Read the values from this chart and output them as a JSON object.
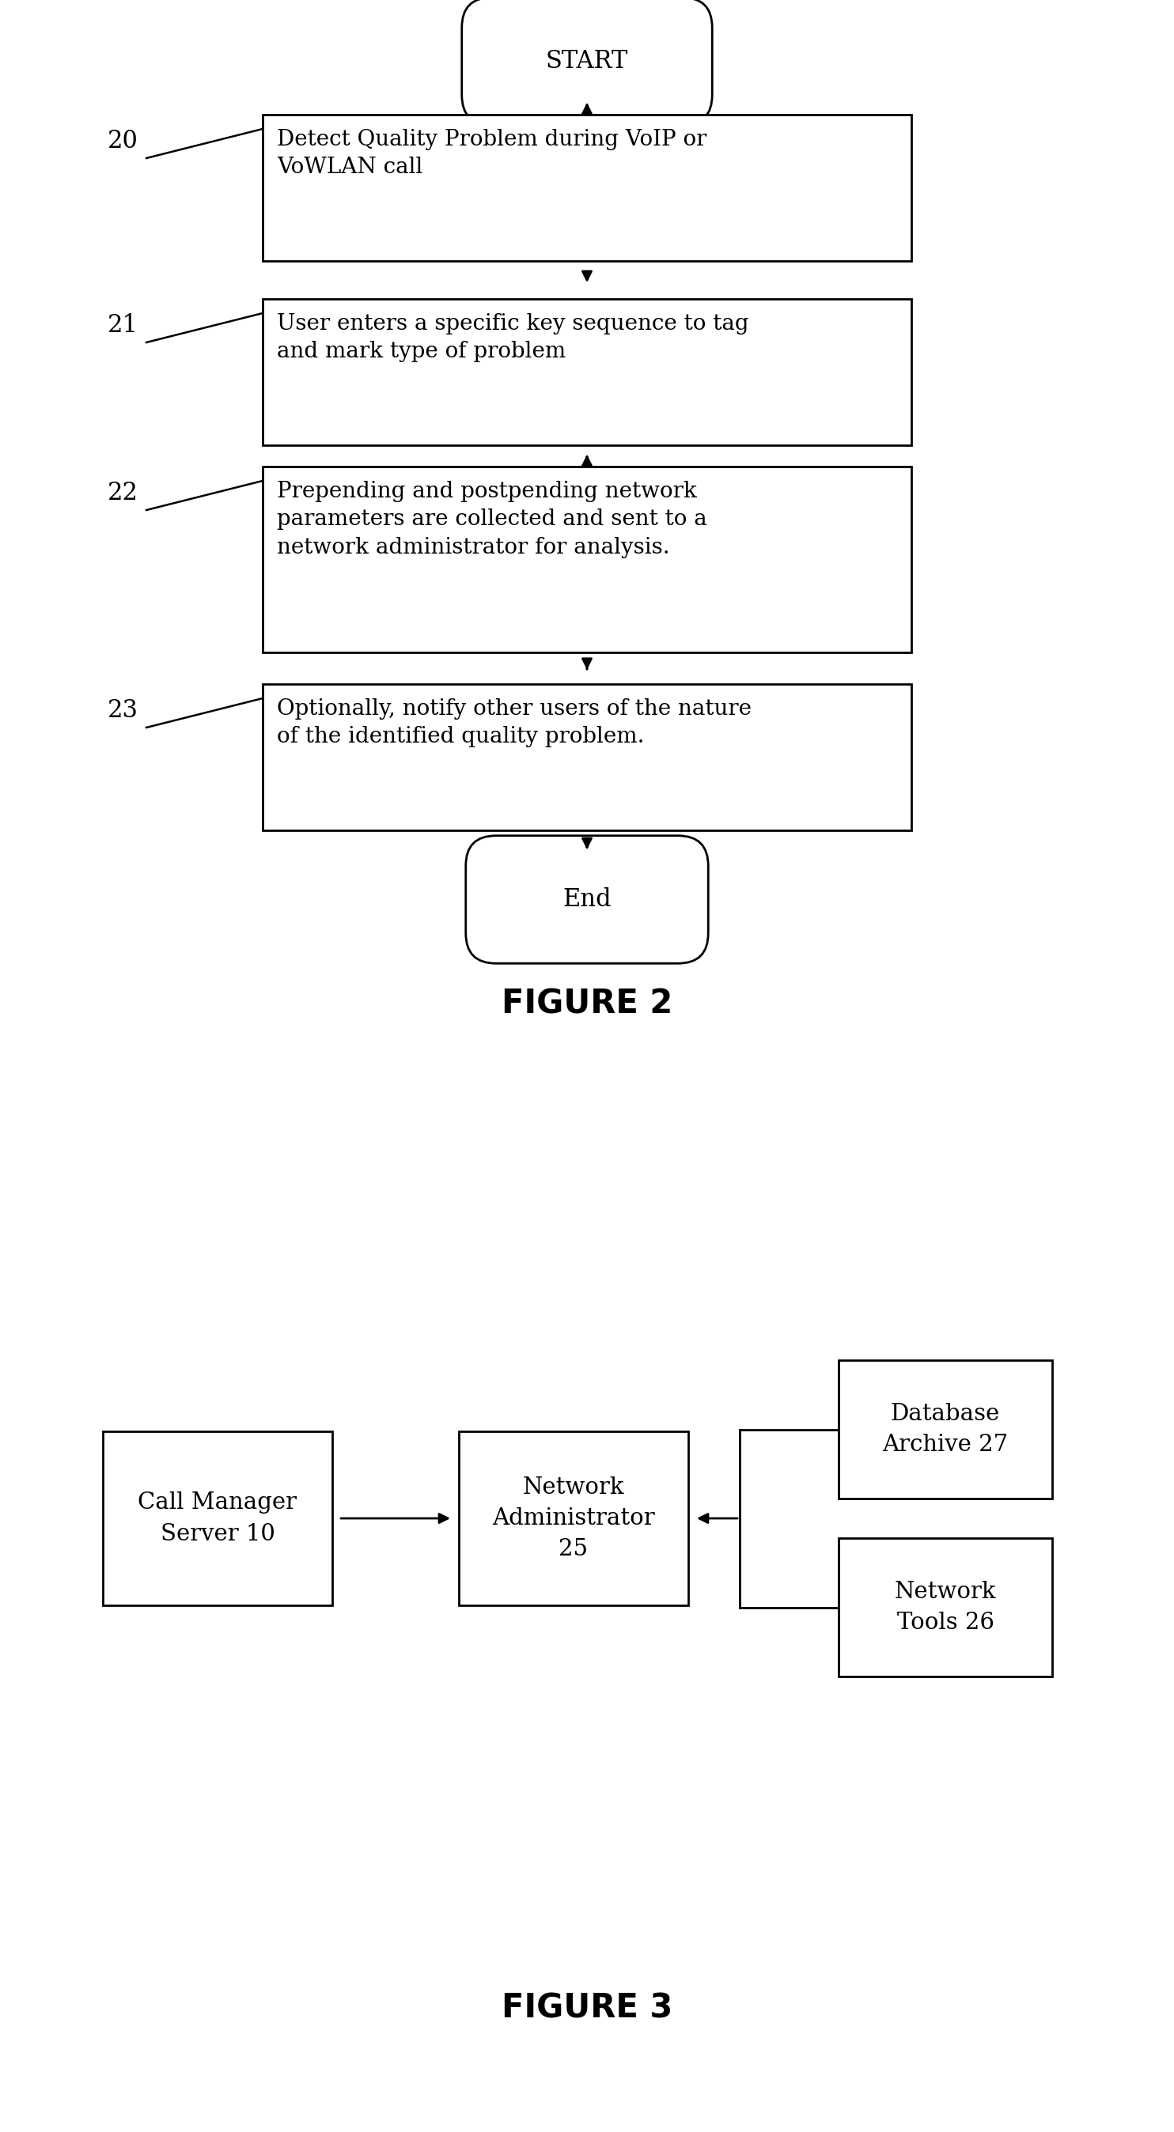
{
  "bg_color": "#ffffff",
  "fig2": {
    "title": "FIGURE 2",
    "start_label": "START",
    "end_label": "End",
    "boxes": [
      {
        "id": "20",
        "text": "Detect Quality Problem during VoIP or\nVoWLAN call"
      },
      {
        "id": "21",
        "text": "User enters a specific key sequence to tag\nand mark type of problem"
      },
      {
        "id": "22",
        "text": "Prepending and postpending network\nparameters are collected and sent to a\nnetwork administrator for analysis."
      },
      {
        "id": "23",
        "text": "Optionally, notify other users of the nature\nof the identified quality problem."
      }
    ]
  },
  "fig3": {
    "title": "FIGURE 3",
    "boxes": [
      {
        "id": "call_mgr",
        "text": "Call Manager\nServer 10"
      },
      {
        "id": "net_admin",
        "text": "Network\nAdministrator\n25"
      },
      {
        "id": "db_archive",
        "text": "Database\nArchive 27"
      },
      {
        "id": "net_tools",
        "text": "Network\nTools 26"
      }
    ]
  }
}
